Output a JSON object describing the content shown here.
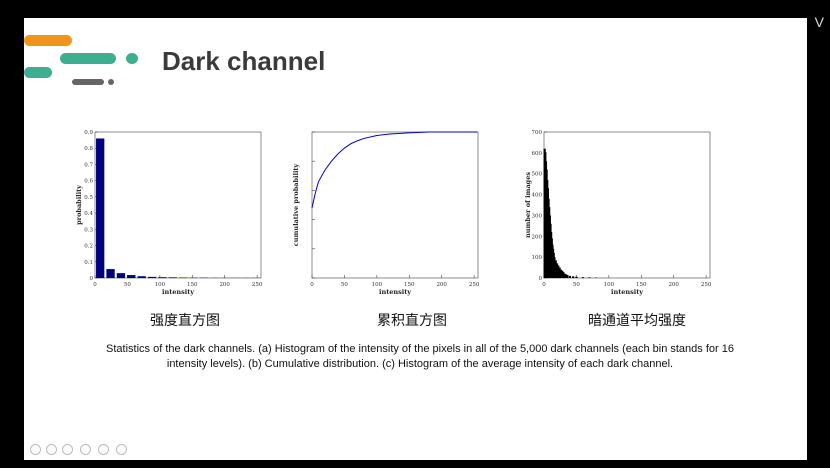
{
  "slide": {
    "title": "Dark channel",
    "caption": "Statistics of the dark channels. (a) Histogram of the intensity of the pixels in all of the 5,000 dark channels (each bin stands for 16 intensity levels). (b) Cumulative distribution. (c) Histogram of the average intensity of each dark channel.",
    "colors": {
      "accent_orange": "#f0941d",
      "accent_teal": "#3daf91",
      "accent_gray": "#666666"
    }
  },
  "window": {
    "corner_text": "V"
  },
  "chart_data": [
    {
      "type": "bar",
      "caption": "强度直方图",
      "xlabel": "intensity",
      "ylabel": "probability",
      "xlim": [
        0,
        256
      ],
      "ylim": [
        0,
        0.9
      ],
      "xticks": [
        "0",
        "50",
        "100",
        "150",
        "200",
        "250"
      ],
      "yticks": [
        "0",
        "0.1",
        "0.2",
        "0.3",
        "0.4",
        "0.5",
        "0.6",
        "0.7",
        "0.8",
        "0.9"
      ],
      "bin_width": 16,
      "bins": [
        8,
        24,
        40,
        56,
        72,
        88,
        104,
        120,
        136,
        152,
        168,
        184,
        200,
        216,
        232,
        248
      ],
      "values": [
        0.86,
        0.055,
        0.03,
        0.018,
        0.011,
        0.007,
        0.005,
        0.004,
        0.003,
        0.002,
        0.002,
        0.001,
        0.001,
        0.001,
        0.001,
        0.001
      ],
      "color": "#000080"
    },
    {
      "type": "line",
      "caption": "累积直方图",
      "xlabel": "intensity",
      "ylabel": "cumulative probability",
      "xlim": [
        0,
        256
      ],
      "ylim": [
        0.5,
        1.0
      ],
      "xticks": [
        "0",
        "50",
        "100",
        "150",
        "200",
        "250"
      ],
      "yticks": [
        "",
        "",
        "",
        "",
        "",
        ""
      ],
      "x": [
        0,
        5,
        10,
        20,
        30,
        40,
        50,
        60,
        70,
        80,
        100,
        120,
        150,
        180,
        220,
        255
      ],
      "y": [
        0.74,
        0.79,
        0.83,
        0.87,
        0.9,
        0.925,
        0.945,
        0.96,
        0.97,
        0.978,
        0.988,
        0.993,
        0.997,
        1.0,
        1.0,
        1.0
      ],
      "color": "#0000cc"
    },
    {
      "type": "bar",
      "caption": "暗通道平均强度",
      "xlabel": "intensity",
      "ylabel": "number of images",
      "xlim": [
        0,
        256
      ],
      "ylim": [
        0,
        700
      ],
      "xticks": [
        "0",
        "50",
        "100",
        "150",
        "200",
        "250"
      ],
      "yticks": [
        "0",
        "100",
        "200",
        "300",
        "400",
        "500",
        "600",
        "700"
      ],
      "bins": [
        1,
        2,
        3,
        4,
        5,
        6,
        7,
        8,
        9,
        10,
        11,
        12,
        13,
        14,
        15,
        16,
        18,
        20,
        22,
        24,
        26,
        28,
        30,
        33,
        36,
        40,
        45,
        50,
        60,
        70,
        80
      ],
      "values": [
        620,
        600,
        560,
        520,
        470,
        430,
        380,
        340,
        300,
        260,
        220,
        190,
        160,
        140,
        120,
        100,
        85,
        70,
        60,
        50,
        40,
        35,
        28,
        20,
        15,
        10,
        8,
        6,
        4,
        3,
        2
      ],
      "color": "#000000"
    }
  ]
}
